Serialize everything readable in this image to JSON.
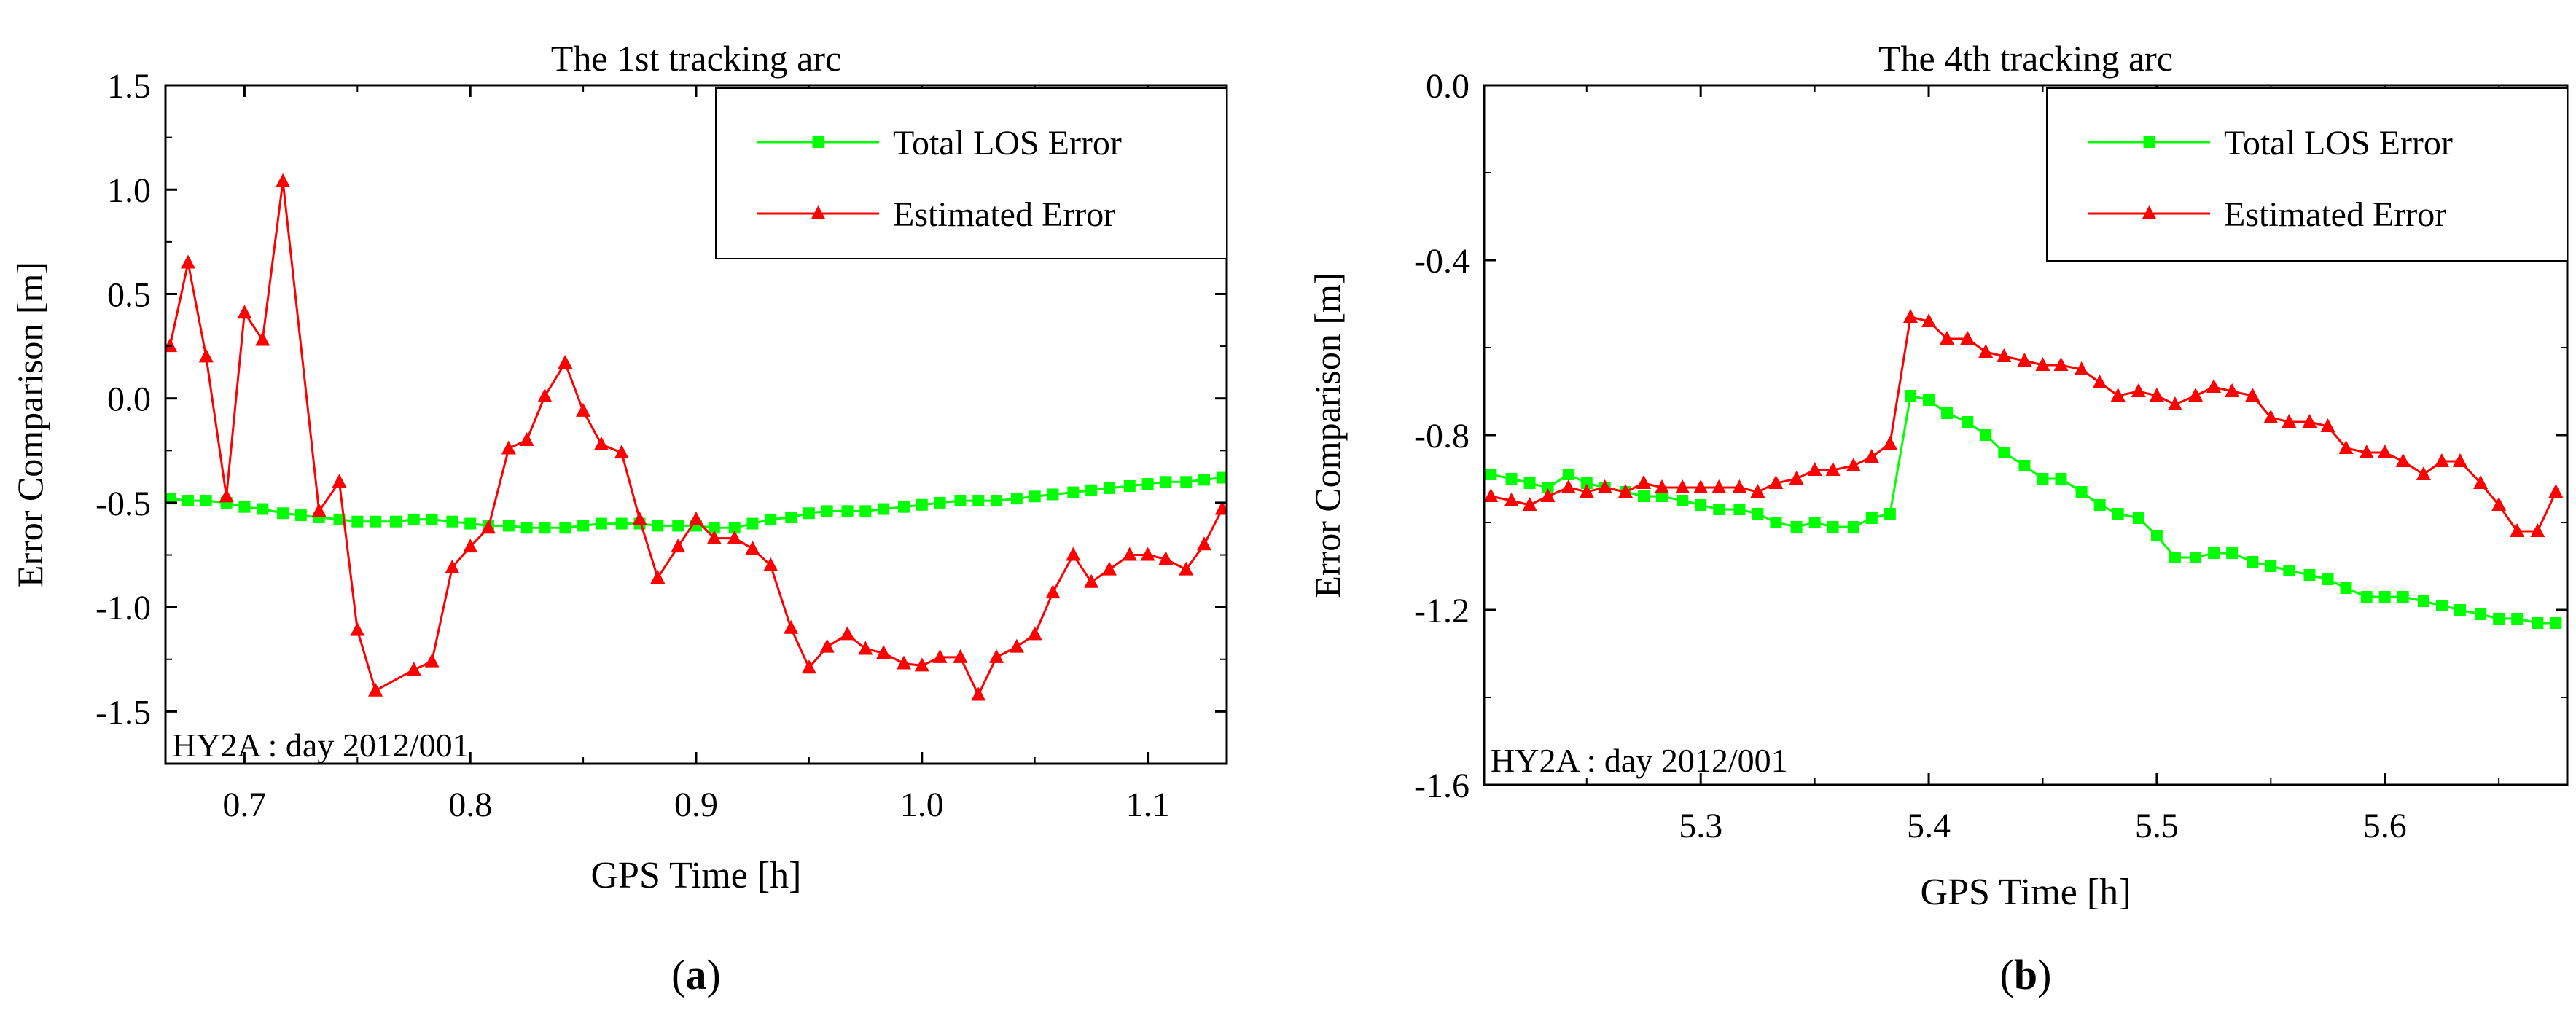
{
  "chart_data": [
    {
      "type": "line",
      "title": "The 1st tracking arc",
      "xlabel": "GPS Time [h]",
      "ylabel": "Error Comparison [m]",
      "xlim": [
        0.665,
        1.135
      ],
      "ylim": [
        -1.75,
        1.5
      ],
      "xticks": [
        0.7,
        0.8,
        0.9,
        1.0,
        1.1
      ],
      "xtick_labels": [
        "0.7",
        "0.8",
        "0.9",
        "1.0",
        "1.1"
      ],
      "yticks": [
        1.5,
        1.0,
        0.5,
        0.0,
        -0.5,
        -1.0,
        -1.5
      ],
      "ytick_labels": [
        "1.5",
        "1.0",
        "0.5",
        "0.0",
        "-0.5",
        "-1.0",
        "-1.5"
      ],
      "annotation": "HY2A : day 2012/001",
      "panel_label": "(a)",
      "legend_position": "top-right",
      "series": [
        {
          "name": "Total LOS Error",
          "color": "#00ff00",
          "marker": "square",
          "x": [
            0.667,
            0.675,
            0.683,
            0.692,
            0.7,
            0.708,
            0.717,
            0.725,
            0.733,
            0.742,
            0.75,
            0.758,
            0.767,
            0.775,
            0.783,
            0.792,
            0.8,
            0.808,
            0.817,
            0.825,
            0.833,
            0.842,
            0.85,
            0.858,
            0.867,
            0.875,
            0.883,
            0.892,
            0.9,
            0.908,
            0.917,
            0.925,
            0.933,
            0.942,
            0.95,
            0.958,
            0.967,
            0.975,
            0.983,
            0.992,
            1.0,
            1.008,
            1.017,
            1.025,
            1.033,
            1.042,
            1.05,
            1.058,
            1.067,
            1.075,
            1.083,
            1.092,
            1.1,
            1.108,
            1.117,
            1.125,
            1.133
          ],
          "y": [
            -0.48,
            -0.49,
            -0.49,
            -0.5,
            -0.52,
            -0.53,
            -0.55,
            -0.56,
            -0.57,
            -0.58,
            -0.59,
            -0.59,
            -0.59,
            -0.58,
            -0.58,
            -0.59,
            -0.6,
            -0.61,
            -0.61,
            -0.62,
            -0.62,
            -0.62,
            -0.61,
            -0.6,
            -0.6,
            -0.6,
            -0.61,
            -0.61,
            -0.61,
            -0.62,
            -0.62,
            -0.6,
            -0.58,
            -0.57,
            -0.55,
            -0.54,
            -0.54,
            -0.54,
            -0.53,
            -0.52,
            -0.51,
            -0.5,
            -0.49,
            -0.49,
            -0.49,
            -0.48,
            -0.47,
            -0.46,
            -0.45,
            -0.44,
            -0.43,
            -0.42,
            -0.41,
            -0.4,
            -0.4,
            -0.39,
            -0.38
          ]
        },
        {
          "name": "Estimated Error",
          "color": "#ff0000",
          "marker": "triangle",
          "x": [
            0.667,
            0.675,
            0.683,
            0.692,
            0.7,
            0.708,
            0.717,
            0.733,
            0.742,
            0.75,
            0.758,
            0.775,
            0.783,
            0.792,
            0.8,
            0.808,
            0.817,
            0.825,
            0.833,
            0.842,
            0.85,
            0.858,
            0.867,
            0.875,
            0.883,
            0.892,
            0.9,
            0.908,
            0.917,
            0.925,
            0.933,
            0.942,
            0.95,
            0.958,
            0.967,
            0.975,
            0.983,
            0.992,
            1.0,
            1.008,
            1.017,
            1.025,
            1.033,
            1.042,
            1.05,
            1.058,
            1.067,
            1.075,
            1.083,
            1.092,
            1.1,
            1.108,
            1.117,
            1.125,
            1.133
          ],
          "y": [
            0.25,
            0.65,
            0.2,
            -0.47,
            0.41,
            0.28,
            1.04,
            -0.54,
            -0.4,
            -1.11,
            -1.4,
            -1.3,
            -1.26,
            -0.81,
            -0.71,
            -0.62,
            -0.24,
            -0.2,
            0.01,
            0.17,
            -0.06,
            -0.22,
            -0.26,
            -0.58,
            -0.86,
            -0.71,
            -0.58,
            -0.67,
            -0.67,
            -0.72,
            -0.8,
            -1.1,
            -1.29,
            -1.19,
            -1.13,
            -1.2,
            -1.22,
            -1.27,
            -1.28,
            -1.24,
            -1.24,
            -1.42,
            -1.24,
            -1.19,
            -1.13,
            -0.93,
            -0.75,
            -0.88,
            -0.82,
            -0.75,
            -0.75,
            -0.77,
            -0.82,
            -0.7,
            -0.53
          ]
        }
      ]
    },
    {
      "type": "line",
      "title": "The 4th tracking arc",
      "xlabel": "GPS Time [h]",
      "ylabel": "Error Comparison [m]",
      "xlim": [
        5.205,
        5.68
      ],
      "ylim": [
        -1.6,
        0.0
      ],
      "xticks": [
        5.3,
        5.4,
        5.5,
        5.6
      ],
      "xtick_labels": [
        "5.3",
        "5.4",
        "5.5",
        "5.6"
      ],
      "yticks": [
        0.0,
        -0.4,
        -0.8,
        -1.2,
        -1.6
      ],
      "ytick_labels": [
        "0.0",
        "-0.4",
        "-0.8",
        "-1.2",
        "-1.6"
      ],
      "annotation": "HY2A : day 2012/001",
      "panel_label": "(b)",
      "legend_position": "top-right",
      "series": [
        {
          "name": "Total LOS Error",
          "color": "#00ff00",
          "marker": "square",
          "x": [
            5.208,
            5.217,
            5.225,
            5.233,
            5.242,
            5.25,
            5.258,
            5.267,
            5.275,
            5.283,
            5.292,
            5.3,
            5.308,
            5.317,
            5.325,
            5.333,
            5.342,
            5.35,
            5.358,
            5.367,
            5.375,
            5.383,
            5.392,
            5.4,
            5.408,
            5.417,
            5.425,
            5.433,
            5.442,
            5.45,
            5.458,
            5.467,
            5.475,
            5.483,
            5.492,
            5.5,
            5.508,
            5.517,
            5.525,
            5.533,
            5.542,
            5.55,
            5.558,
            5.567,
            5.575,
            5.583,
            5.592,
            5.6,
            5.608,
            5.617,
            5.625,
            5.633,
            5.642,
            5.65,
            5.658,
            5.667,
            5.675
          ],
          "y": [
            -0.89,
            -0.9,
            -0.91,
            -0.92,
            -0.89,
            -0.91,
            -0.92,
            -0.93,
            -0.94,
            -0.94,
            -0.95,
            -0.96,
            -0.97,
            -0.97,
            -0.98,
            -1.0,
            -1.01,
            -1.0,
            -1.01,
            -1.01,
            -0.99,
            -0.98,
            -0.71,
            -0.72,
            -0.75,
            -0.77,
            -0.8,
            -0.84,
            -0.87,
            -0.9,
            -0.9,
            -0.93,
            -0.96,
            -0.98,
            -0.99,
            -1.03,
            -1.08,
            -1.08,
            -1.07,
            -1.07,
            -1.09,
            -1.1,
            -1.11,
            -1.12,
            -1.13,
            -1.15,
            -1.17,
            -1.17,
            -1.17,
            -1.18,
            -1.19,
            -1.2,
            -1.21,
            -1.22,
            -1.22,
            -1.23,
            -1.23
          ]
        },
        {
          "name": "Estimated Error",
          "color": "#ff0000",
          "marker": "triangle",
          "x": [
            5.208,
            5.217,
            5.225,
            5.233,
            5.242,
            5.25,
            5.258,
            5.267,
            5.275,
            5.283,
            5.292,
            5.3,
            5.308,
            5.317,
            5.325,
            5.333,
            5.342,
            5.35,
            5.358,
            5.367,
            5.375,
            5.383,
            5.392,
            5.4,
            5.408,
            5.417,
            5.425,
            5.433,
            5.442,
            5.45,
            5.458,
            5.467,
            5.475,
            5.483,
            5.492,
            5.5,
            5.508,
            5.517,
            5.525,
            5.533,
            5.542,
            5.55,
            5.558,
            5.567,
            5.575,
            5.583,
            5.592,
            5.6,
            5.608,
            5.617,
            5.625,
            5.633,
            5.642,
            5.65,
            5.658,
            5.667,
            5.675
          ],
          "y": [
            -0.94,
            -0.95,
            -0.96,
            -0.94,
            -0.92,
            -0.93,
            -0.92,
            -0.93,
            -0.91,
            -0.92,
            -0.92,
            -0.92,
            -0.92,
            -0.92,
            -0.93,
            -0.91,
            -0.9,
            -0.88,
            -0.88,
            -0.87,
            -0.85,
            -0.82,
            -0.53,
            -0.54,
            -0.58,
            -0.58,
            -0.61,
            -0.62,
            -0.63,
            -0.64,
            -0.64,
            -0.65,
            -0.68,
            -0.71,
            -0.7,
            -0.71,
            -0.73,
            -0.71,
            -0.69,
            -0.7,
            -0.71,
            -0.76,
            -0.77,
            -0.77,
            -0.78,
            -0.83,
            -0.84,
            -0.84,
            -0.86,
            -0.89,
            -0.86,
            -0.86,
            -0.91,
            -0.96,
            -1.02,
            -1.02,
            -0.93
          ]
        }
      ]
    }
  ]
}
